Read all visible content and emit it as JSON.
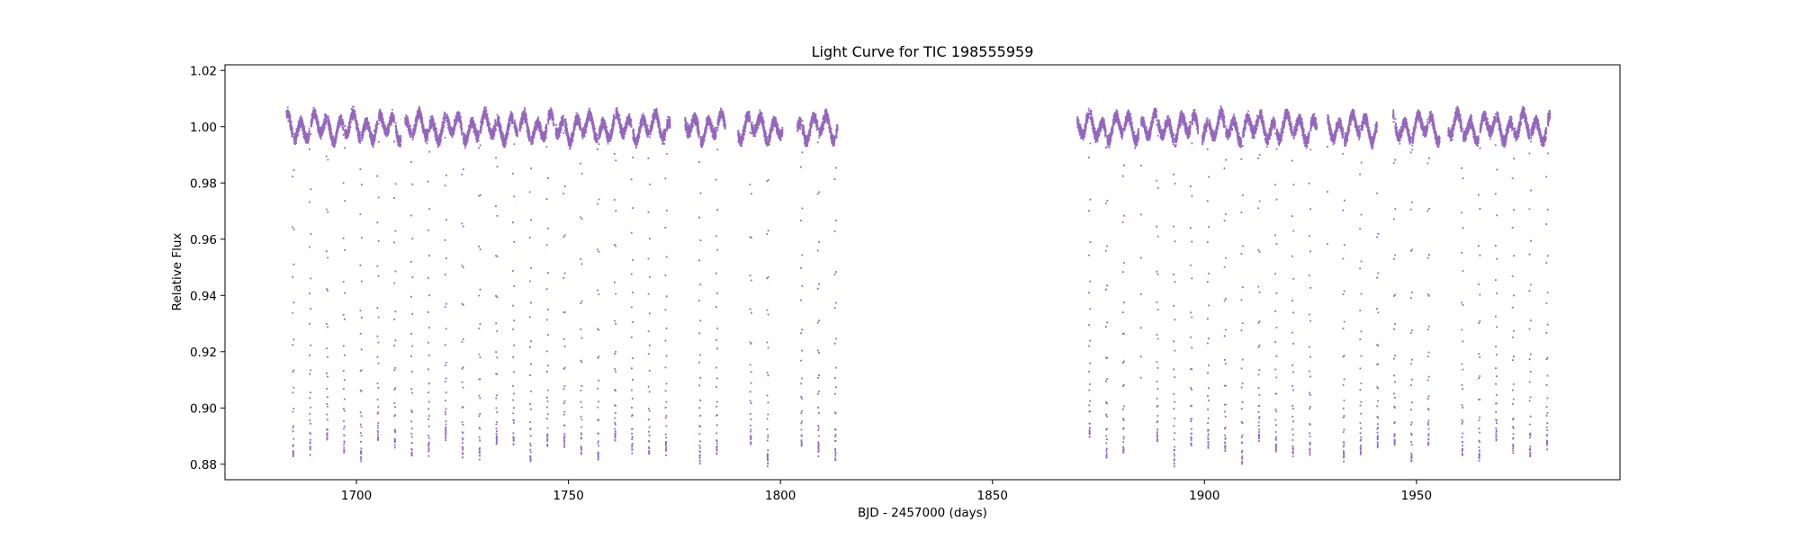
{
  "chart_data": {
    "type": "scatter",
    "title": "Light Curve for TIC 198555959",
    "xlabel": "BJD - 2457000 (days)",
    "ylabel": "Relative Flux",
    "xlim": [
      1669,
      1998
    ],
    "ylim": [
      0.8745,
      1.022
    ],
    "xticks": [
      1700,
      1750,
      1800,
      1850,
      1900,
      1950
    ],
    "yticks": [
      0.88,
      0.9,
      0.92,
      0.94,
      0.96,
      0.98,
      1.0,
      1.02
    ],
    "ytick_labels": [
      "0.88",
      "0.90",
      "0.92",
      "0.94",
      "0.96",
      "0.98",
      "1.00",
      "1.02"
    ],
    "marker_color": "#9467bd",
    "grid": false,
    "legend": "none",
    "series": [
      {
        "segments": [
          [
            1683.5,
            1710.5
          ],
          [
            1711.5,
            1738.0
          ],
          [
            1738.5,
            1746.5
          ],
          [
            1747.0,
            1774.0
          ],
          [
            1777.5,
            1787.0
          ],
          [
            1790.0,
            1800.5
          ],
          [
            1804.0,
            1813.5
          ],
          [
            1870.0,
            1884.5
          ],
          [
            1885.0,
            1898.5
          ],
          [
            1899.5,
            1926.5
          ],
          [
            1929.0,
            1941.0
          ],
          [
            1944.5,
            1955.5
          ],
          [
            1957.5,
            1981.5
          ]
        ],
        "baseline": 1.0,
        "transit_period": 3.996,
        "transit_epoch": 1685.1,
        "transit_depth": 0.114
      }
    ]
  }
}
